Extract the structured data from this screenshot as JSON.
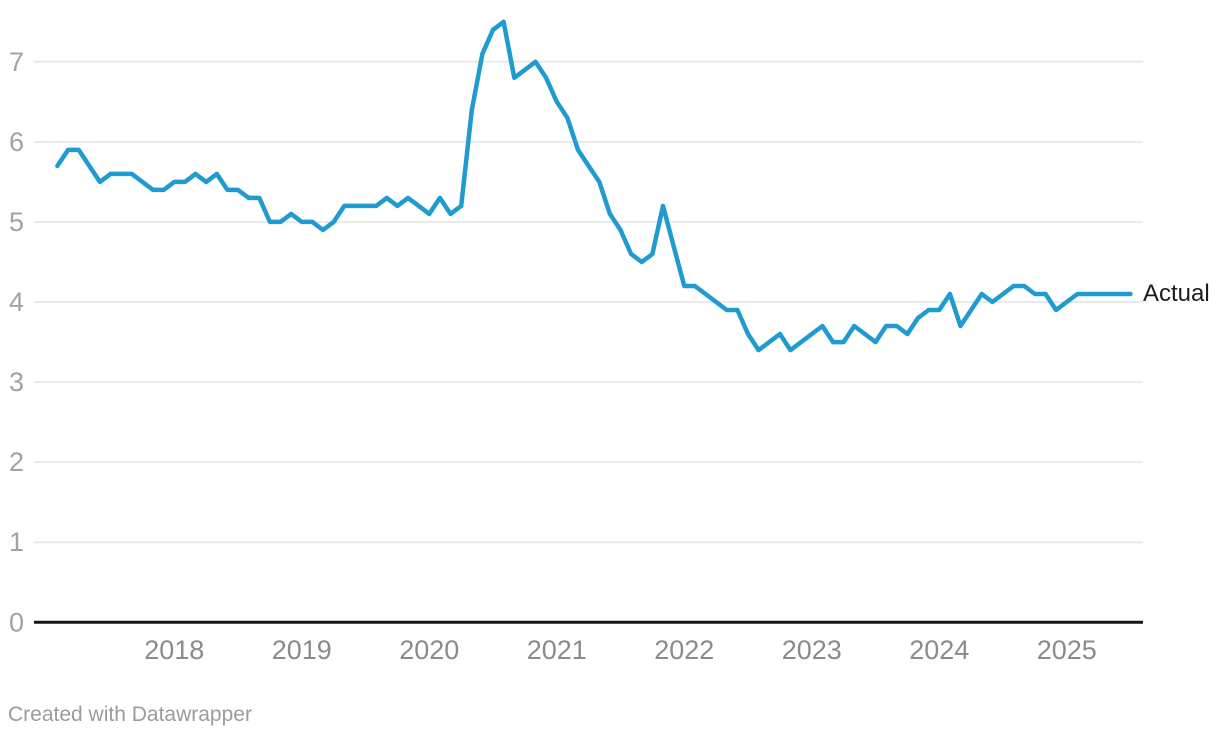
{
  "chart": {
    "series_label": "Actual",
    "line_color": "#1f9bd0",
    "grid_color": "#eaeaea",
    "axis_color": "#151515",
    "x_tick_label_color": "#8b8b8b",
    "y_tick_label_color": "#a2a2a2",
    "background_color": "#ffffff"
  },
  "footer": {
    "credit": "Created with Datawrapper"
  },
  "chart_data": {
    "type": "line",
    "title": "",
    "xlabel": "",
    "ylabel": "",
    "x_unit": "month",
    "x_start": "2017-01",
    "x_end": "2025-06",
    "ylim": [
      0,
      7.5
    ],
    "grid": "horizontal",
    "y_ticks": [
      7,
      6,
      5,
      4,
      3,
      2,
      1,
      0
    ],
    "x_ticks": [
      "2018",
      "2019",
      "2020",
      "2021",
      "2022",
      "2023",
      "2024",
      "2025"
    ],
    "legend_position": "end-of-line",
    "series": [
      {
        "name": "Actual",
        "values": [
          5.7,
          5.9,
          5.9,
          5.7,
          5.5,
          5.6,
          5.6,
          5.6,
          5.5,
          5.4,
          5.4,
          5.5,
          5.5,
          5.6,
          5.5,
          5.6,
          5.4,
          5.4,
          5.3,
          5.3,
          5.0,
          5.0,
          5.1,
          5.0,
          5.0,
          4.9,
          5.0,
          5.2,
          5.2,
          5.2,
          5.2,
          5.3,
          5.2,
          5.3,
          5.2,
          5.1,
          5.3,
          5.1,
          5.2,
          6.4,
          7.1,
          7.4,
          7.5,
          6.8,
          6.9,
          7.0,
          6.8,
          6.5,
          6.3,
          5.9,
          5.7,
          5.5,
          5.1,
          4.9,
          4.6,
          4.5,
          4.6,
          5.2,
          4.7,
          4.2,
          4.2,
          4.1,
          4.0,
          3.9,
          3.9,
          3.6,
          3.4,
          3.5,
          3.6,
          3.4,
          3.5,
          3.6,
          3.7,
          3.5,
          3.5,
          3.7,
          3.6,
          3.5,
          3.7,
          3.7,
          3.6,
          3.8,
          3.9,
          3.9,
          4.1,
          3.7,
          3.9,
          4.1,
          4.0,
          4.1,
          4.2,
          4.2,
          4.1,
          4.1,
          3.9,
          4.0,
          4.1,
          4.1,
          4.1,
          4.1,
          4.1,
          4.1
        ]
      }
    ]
  }
}
